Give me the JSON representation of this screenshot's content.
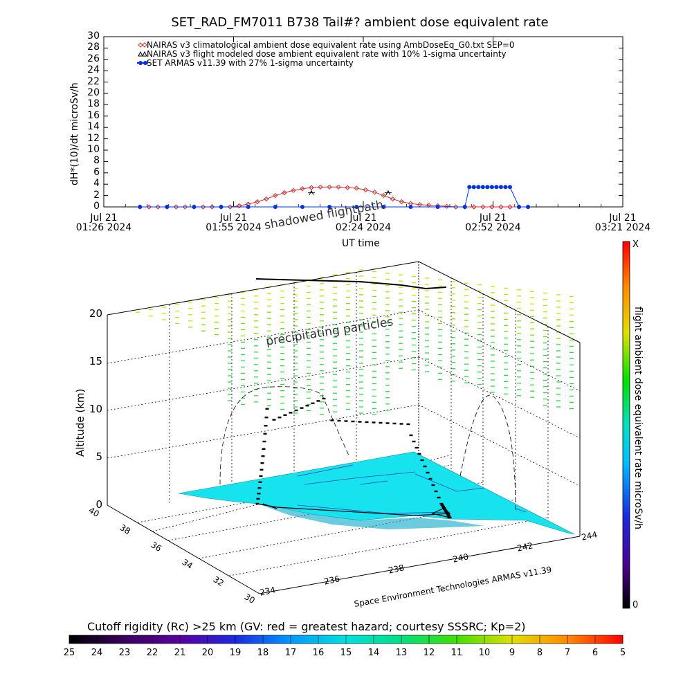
{
  "title": "SET_RAD_FM7011  B738 Tail#? ambient dose equivalent rate",
  "chart_data": [
    {
      "type": "line",
      "title": "SET_RAD_FM7011  B738 Tail#? ambient dose equivalent rate",
      "ylabel": "dH*(10)/dt microSv/h",
      "xlabel": "UT time",
      "ylim": [
        0,
        30
      ],
      "yticks": [
        "0",
        "2",
        "4",
        "6",
        "8",
        "10",
        "12",
        "14",
        "16",
        "18",
        "20",
        "22",
        "24",
        "26",
        "28",
        "30"
      ],
      "xticks": [
        {
          "line1": "Jul 21",
          "line2": "01:26 2024"
        },
        {
          "line1": "Jul 21",
          "line2": "01:55 2024"
        },
        {
          "line1": "Jul 21",
          "line2": "02:24 2024"
        },
        {
          "line1": "Jul 21",
          "line2": "02:52 2024"
        },
        {
          "line1": "Jul 21",
          "line2": "03:21 2024"
        }
      ],
      "x_minutes_range": [
        86,
        201
      ],
      "legend": [
        "NAIRAS v3 climatological ambient dose equivalent rate using AmbDoseEq_G0.txt SEP=0",
        "NAIRAS v3 flight modeled dose ambient equivalent rate with 10% 1-sigma uncertainty",
        "SET ARMAS v11.39 with 27% 1-sigma uncertainty"
      ],
      "legend_placement": "top-left",
      "series": [
        {
          "name": "NAIRAS v3 climatological ambient dose equivalent rate using AmbDoseEq_G0.txt SEP=0",
          "color": "#cc3333",
          "marker": "diamond",
          "x": [
            94,
            96,
            98,
            100,
            102,
            104,
            106,
            108,
            110,
            112,
            114,
            116,
            118,
            120,
            122,
            124,
            126,
            128,
            130,
            132,
            134,
            136,
            138,
            140,
            142,
            144,
            146,
            148,
            150,
            152,
            154,
            156,
            158,
            160,
            162,
            164,
            166,
            168,
            170,
            172,
            174,
            176,
            178,
            180
          ],
          "y": [
            0,
            0,
            0,
            0,
            0,
            0,
            0,
            0,
            0,
            0,
            0,
            0.2,
            0.5,
            0.9,
            1.4,
            2.0,
            2.5,
            2.9,
            3.2,
            3.4,
            3.5,
            3.5,
            3.5,
            3.4,
            3.3,
            3.0,
            2.6,
            2.0,
            1.4,
            0.9,
            0.6,
            0.4,
            0.3,
            0.2,
            0.1,
            0,
            0,
            0,
            0,
            0,
            0,
            0,
            0,
            0
          ]
        },
        {
          "name": "NAIRAS v3 flight modeled dose ambient equivalent rate with 10% 1-sigma uncertainty",
          "color": "#000000",
          "marker": "triangle",
          "x": [
            132,
            149
          ],
          "y": [
            2.6,
            2.6
          ]
        },
        {
          "name": "SET ARMAS v11.39 with 27% 1-sigma uncertainty",
          "color": "#0033dd",
          "marker": "circle",
          "x": [
            94,
            100,
            106,
            112,
            118,
            124,
            130,
            136,
            142,
            148,
            154,
            160,
            166,
            167,
            168,
            169,
            170,
            171,
            172,
            173,
            174,
            175,
            176,
            178,
            180
          ],
          "y": [
            0,
            0,
            0,
            0,
            0,
            0,
            0,
            0,
            0,
            0,
            0,
            0,
            0,
            3.5,
            3.5,
            3.5,
            3.5,
            3.5,
            3.5,
            3.5,
            3.5,
            3.5,
            3.5,
            0,
            0
          ]
        }
      ]
    },
    {
      "type": "scatter",
      "title": "",
      "zlabel": "Altitude (km)",
      "zticks": [
        "0",
        "5",
        "10",
        "15",
        "20"
      ],
      "lat_ticks": [
        "40",
        "38",
        "36",
        "34",
        "32",
        "30"
      ],
      "lon_ticks": [
        "234",
        "236",
        "238",
        "240",
        "242",
        "244"
      ],
      "credit": "Space Environment Technologies ARMAS v11.39",
      "annotations": [
        "shadowed flightpath",
        "precipitating particles"
      ],
      "colorbar_label": "flight ambient dose equivalent rate microSv/h",
      "colorbar_top": "X",
      "colorbar_bottom": "0"
    },
    {
      "type": "heatmap",
      "title": "Cutoff rigidity (Rc) >25 km (GV: red = greatest hazard; courtesy SSSRC; Kp=2)",
      "ticks": [
        "25",
        "24",
        "23",
        "22",
        "21",
        "20",
        "19",
        "18",
        "17",
        "16",
        "15",
        "14",
        "13",
        "12",
        "11",
        "10",
        "9",
        "8",
        "7",
        "6",
        "5"
      ]
    }
  ]
}
